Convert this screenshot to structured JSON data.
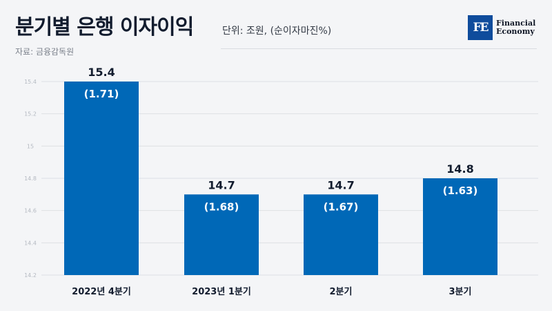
{
  "header": {
    "title": "분기별 은행 이자이익",
    "unit": "단위: 조원, (순이자마진%)",
    "source": "자료: 금융감독원"
  },
  "logo": {
    "mark": "FE",
    "line1": "Financial",
    "line2": "Economy"
  },
  "colors": {
    "bar": "#0068b7",
    "grid": "#dde0e4"
  },
  "chart_data": {
    "type": "bar",
    "categories": [
      "2022년 4분기",
      "2023년 1분기",
      "2분기",
      "3분기"
    ],
    "values": [
      15.4,
      14.7,
      14.7,
      14.8
    ],
    "value_labels": [
      "15.4",
      "14.7",
      "14.7",
      "14.8"
    ],
    "nim_labels": [
      "(1.71)",
      "(1.68)",
      "(1.67)",
      "(1.63)"
    ],
    "ylim": [
      14.2,
      15.4
    ],
    "yticks": [
      14.2,
      14.4,
      14.6,
      14.8,
      15,
      15.2,
      15.4
    ],
    "ytick_labels": [
      "14.2",
      "14.4",
      "14.6",
      "14.8",
      "15",
      "15.2",
      "15.4"
    ],
    "grid": true
  }
}
